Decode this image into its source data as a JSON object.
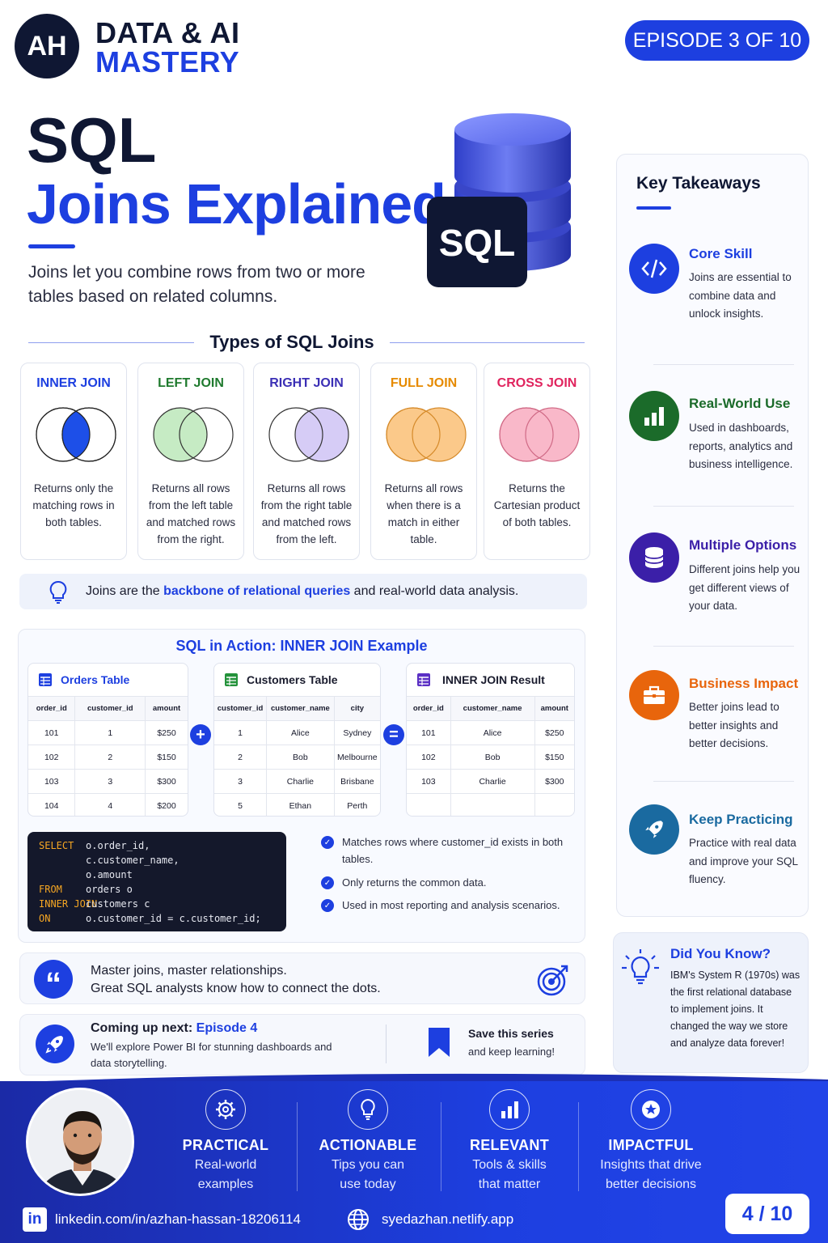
{
  "header": {
    "logo_initials": "AH",
    "brand_line1": "DATA & AI",
    "brand_line2": "MASTERY",
    "episode": "EPISODE 3 OF 10"
  },
  "hero": {
    "title_line1": "SQL",
    "title_line2": "Joins Explained",
    "intro": "Joins let you combine rows from two or more tables based on related columns.",
    "db_badge": "SQL"
  },
  "types": {
    "title": "Types of SQL Joins",
    "cards": [
      {
        "name": "INNER JOIN",
        "desc": "Returns only the matching rows in both tables.",
        "color": "#1d3fe0"
      },
      {
        "name": "LEFT JOIN",
        "desc": "Returns all rows from the left table and matched rows from the right.",
        "color": "#1f7a2e"
      },
      {
        "name": "RIGHT JOIN",
        "desc": "Returns all rows from the right table and matched rows from the left.",
        "color": "#3b2fb5"
      },
      {
        "name": "FULL JOIN",
        "desc": "Returns all rows when there is a match in either table.",
        "color": "#e68a00"
      },
      {
        "name": "CROSS JOIN",
        "desc": "Returns the Cartesian product of both tables.",
        "color": "#e0245e"
      }
    ]
  },
  "backbone": {
    "pre": "Joins are the ",
    "highlight": "backbone of relational queries",
    "post": " and real-world data analysis."
  },
  "action": {
    "title": "SQL in Action: INNER JOIN Example",
    "orders": {
      "title": "Orders Table",
      "columns": [
        "order_id",
        "customer_id",
        "amount"
      ],
      "rows": [
        [
          "101",
          "1",
          "$250"
        ],
        [
          "102",
          "2",
          "$150"
        ],
        [
          "103",
          "3",
          "$300"
        ],
        [
          "104",
          "4",
          "$200"
        ]
      ]
    },
    "customers": {
      "title": "Customers Table",
      "columns": [
        "customer_id",
        "customer_name",
        "city"
      ],
      "rows": [
        [
          "1",
          "Alice",
          "Sydney"
        ],
        [
          "2",
          "Bob",
          "Melbourne"
        ],
        [
          "3",
          "Charlie",
          "Brisbane"
        ],
        [
          "5",
          "Ethan",
          "Perth"
        ]
      ]
    },
    "result": {
      "title": "INNER JOIN Result",
      "columns": [
        "order_id",
        "customer_name",
        "amount"
      ],
      "rows": [
        [
          "101",
          "Alice",
          "$250"
        ],
        [
          "102",
          "Bob",
          "$150"
        ],
        [
          "103",
          "Charlie",
          "$300"
        ],
        [
          "",
          "",
          ""
        ]
      ]
    },
    "code_lines": [
      {
        "kw": "SELECT",
        "rest": "o.order_id,"
      },
      {
        "kw": "",
        "rest": "c.customer_name,"
      },
      {
        "kw": "",
        "rest": "o.amount"
      },
      {
        "kw": "FROM",
        "rest": "orders o"
      },
      {
        "kw": "INNER JOIN",
        "rest": "customers c"
      },
      {
        "kw": "ON",
        "rest": "o.customer_id = c.customer_id;"
      }
    ],
    "checks": [
      "Matches rows where customer_id exists in both tables.",
      "Only returns the common data.",
      "Used in most reporting and analysis scenarios."
    ]
  },
  "quote": {
    "line1": "Master joins, master relationships.",
    "line2": "Great SQL analysts know how to connect the dots."
  },
  "next": {
    "label": "Coming up next: ",
    "episode": "Episode 4",
    "desc": "We'll explore Power BI for stunning dashboards and data storytelling.",
    "save_title": "Save this series",
    "save_desc": "and keep learning!"
  },
  "takeaways": {
    "title": "Key Takeaways",
    "items": [
      {
        "title": "Core Skill",
        "desc": "Joins are essential to combine data and unlock insights.",
        "color": "#1d3fe0",
        "icon": "code-icon"
      },
      {
        "title": "Real-World Use",
        "desc": "Used in dashboards, reports, analytics and business intelligence.",
        "color": "#1b6b2a",
        "icon": "bar-chart-icon"
      },
      {
        "title": "Multiple Options",
        "desc": "Different joins help you get different views of your data.",
        "color": "#3b1fa8",
        "icon": "database-icon"
      },
      {
        "title": "Business Impact",
        "desc": "Better joins lead to better insights and better decisions.",
        "color": "#e8650c",
        "icon": "briefcase-icon"
      },
      {
        "title": "Keep Practicing",
        "desc": "Practice with real data and improve your SQL fluency.",
        "color": "#1a6aa0",
        "icon": "rocket-icon"
      }
    ]
  },
  "did_you_know": {
    "title": "Did You Know?",
    "desc": "IBM's System R (1970s) was the first relational database to implement joins. It changed the way we store and analyze data forever!"
  },
  "footer": {
    "columns": [
      {
        "title": "PRACTICAL",
        "desc": "Real-world examples",
        "icon": "gear-icon"
      },
      {
        "title": "ACTIONABLE",
        "desc": "Tips you can use today",
        "icon": "lightbulb-icon"
      },
      {
        "title": "RELEVANT",
        "desc": "Tools & skills that matter",
        "icon": "bar-chart-icon"
      },
      {
        "title": "IMPACTFUL",
        "desc": "Insights that drive better decisions",
        "icon": "star-icon"
      }
    ],
    "linkedin": "linkedin.com/in/azhan-hassan-18206114",
    "website": "syedazhan.netlify.app",
    "page": "4 / 10"
  }
}
